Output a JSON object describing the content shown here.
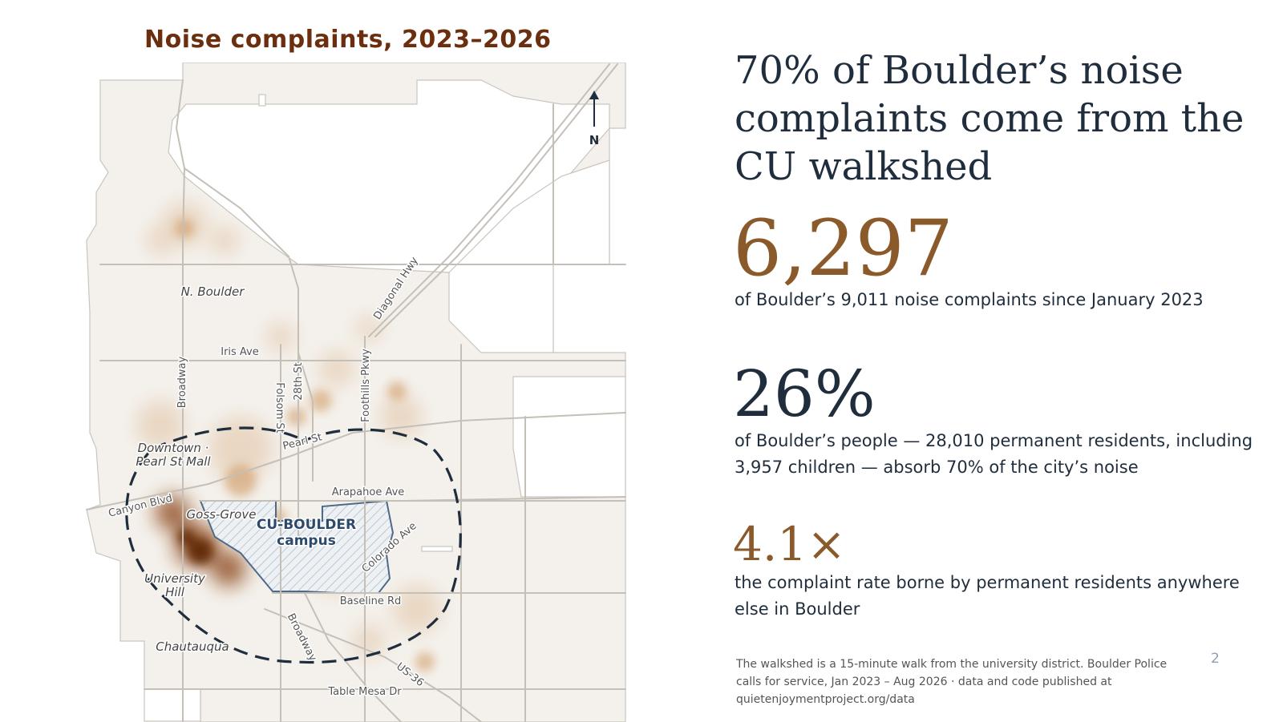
{
  "map": {
    "title": "Noise complaints, 2023–2026",
    "north_label": "N",
    "roads": {
      "diagonal_hwy": "Diagonal Hwy",
      "iris_ave": "Iris Ave",
      "broadway_north": "Broadway",
      "folsom_st": "Folsom St",
      "st28": "28th St",
      "foothills_pkwy": "Foothills Pkwy",
      "pearl_st": "Pearl St",
      "arapahoe_ave": "Arapahoe Ave",
      "canyon_blvd": "Canyon Blvd",
      "colorado_ave": "Colorado Ave",
      "baseline_rd": "Baseline Rd",
      "broadway_south": "Broadway",
      "us36": "US-36",
      "table_mesa_dr": "Table Mesa Dr"
    },
    "places": {
      "north_boulder": "N. Boulder",
      "downtown_line1": "Downtown ·",
      "downtown_line2": "Pearl St Mall",
      "goss_grove": "Goss-Grove",
      "university_hill_line1": "University",
      "university_hill_line2": "Hill",
      "chautauqua": "Chautauqua"
    },
    "campus": {
      "line1": "CU-BOULDER",
      "line2": "campus"
    },
    "colors": {
      "land": "#f4f1ec",
      "heat": "#8b4513",
      "walkshed": "#1f2d3d",
      "campus": "#2c4a6b"
    }
  },
  "headline": "70% of Boulder’s noise complaints come from the CU walkshed",
  "stats": [
    {
      "value": "6,297",
      "description": "of Boulder’s 9,011 noise complaints since January 2023"
    },
    {
      "value": "26%",
      "description": "of Boulder’s people — 28,010 permanent residents, including 3,957 children — absorb 70% of the city’s noise"
    },
    {
      "value": "4.1×",
      "description": "the complaint rate borne by permanent residents anywhere else in Boulder"
    }
  ],
  "footnote": "The walkshed is a 15-minute walk from the university district. Boulder Police calls for service, Jan 2023 – Aug 2026 · data and code published at quietenjoymentproject.org/data",
  "page_number": "2"
}
